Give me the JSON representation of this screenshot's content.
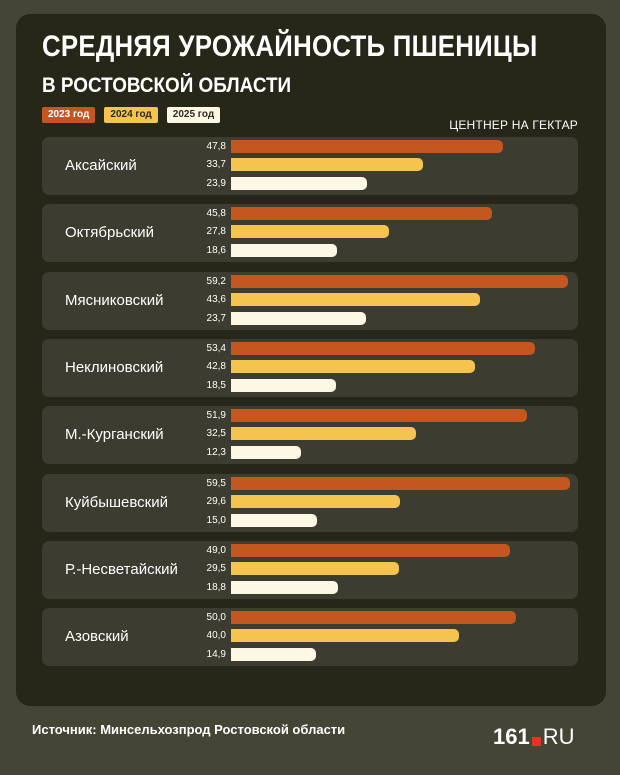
{
  "chart_data": {
    "type": "bar",
    "title": "СРЕДНЯЯ УРОЖАЙНОСТЬ ПШЕНИЦЫ",
    "subtitle": "В РОСТОВСКОЙ ОБЛАСТИ",
    "unit_label": "ЦЕНТНЕР НА ГЕКТАР",
    "max_value": 60,
    "categories": [
      "Аксайский",
      "Октябрьский",
      "Мясниковский",
      "Неклиновский",
      "М.-Курганский",
      "Куйбышевский",
      "Р.-Несветайский",
      "Азовский"
    ],
    "series": [
      {
        "name": "2023 год",
        "color": "#c4561f",
        "text_color": "#ffffff",
        "values": [
          47.8,
          45.8,
          59.2,
          53.4,
          51.9,
          59.5,
          49.0,
          50.0
        ],
        "labels": [
          "47,8",
          "45,8",
          "59,2",
          "53,4",
          "51,9",
          "59,5",
          "49,0",
          "50,0"
        ]
      },
      {
        "name": "2024 год",
        "color": "#f4c44e",
        "text_color": "#2a2a1d",
        "values": [
          33.7,
          27.8,
          43.6,
          42.8,
          32.5,
          29.6,
          29.5,
          40.0
        ],
        "labels": [
          "33,7",
          "27,8",
          "43,6",
          "42,8",
          "32,5",
          "29,6",
          "29,5",
          "40,0"
        ]
      },
      {
        "name": "2025 год",
        "color": "#fdf8e6",
        "text_color": "#2a2a1d",
        "values": [
          23.9,
          18.6,
          23.7,
          18.5,
          12.3,
          15.0,
          18.8,
          14.9
        ],
        "labels": [
          "23,9",
          "18,6",
          "23,7",
          "18,5",
          "12,3",
          "15,0",
          "18,8",
          "14,9"
        ]
      }
    ]
  },
  "footer": {
    "source": "Источник: Минсельхозпрод Ростовской области",
    "logo_number": "161",
    "logo_suffix": "RU"
  }
}
